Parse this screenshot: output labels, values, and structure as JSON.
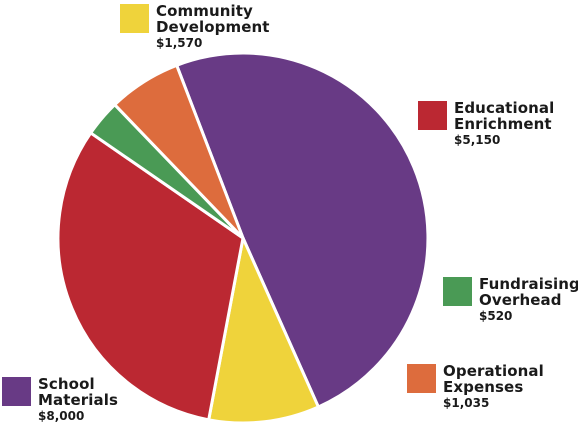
{
  "chart_data": {
    "type": "pie",
    "title": "",
    "start_angle_deg": -111,
    "slices": [
      {
        "label": "School Materials",
        "value": 8000,
        "value_label": "$8,000",
        "color": "#683a85",
        "legend": "bottom-left"
      },
      {
        "label": "Community Development",
        "value": 1570,
        "value_label": "$1,570",
        "color": "#efd33b",
        "legend": "top"
      },
      {
        "label": "Educational Enrichment",
        "value": 5150,
        "value_label": "$5,150",
        "color": "#bb2832",
        "legend": "right"
      },
      {
        "label": "Fundraising Overhead",
        "value": 520,
        "value_label": "$520",
        "color": "#4a9a55",
        "legend": "right"
      },
      {
        "label": "Operational Expenses",
        "value": 1035,
        "value_label": "$1,035",
        "color": "#dd6c3d",
        "legend": "bottom-right"
      }
    ]
  }
}
